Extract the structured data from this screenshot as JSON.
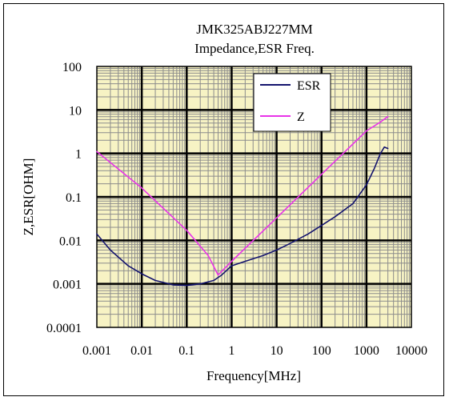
{
  "chart_data": {
    "type": "line",
    "title": "JMK325ABJ227MM",
    "subtitle": "Impedance,ESR  Freq.",
    "xlabel": "Frequency[MHz]",
    "ylabel": "Z,ESR[OHM]",
    "xscale": "log",
    "yscale": "log",
    "xlim": [
      0.001,
      10000
    ],
    "ylim": [
      0.0001,
      100
    ],
    "xticks": [
      "0.001",
      "0.01",
      "0.1",
      "1",
      "10",
      "100",
      "1000",
      "10000"
    ],
    "yticks": [
      "100",
      "10",
      "1",
      "0.1",
      "0.01",
      "0.001",
      "0.0001"
    ],
    "grid": true,
    "legend": "top-right",
    "plot_background": "#f7f3c4",
    "series": [
      {
        "name": "ESR",
        "color": "#14146e",
        "x": [
          0.001,
          0.002,
          0.005,
          0.01,
          0.02,
          0.05,
          0.1,
          0.2,
          0.4,
          0.6,
          1,
          2,
          5,
          10,
          20,
          50,
          100,
          200,
          500,
          1000,
          1500,
          2000,
          2500,
          3000
        ],
        "y": [
          0.014,
          0.006,
          0.0026,
          0.0017,
          0.0012,
          0.00095,
          0.00092,
          0.001,
          0.0012,
          0.0016,
          0.0026,
          0.0033,
          0.0045,
          0.006,
          0.0085,
          0.014,
          0.022,
          0.035,
          0.07,
          0.19,
          0.45,
          0.95,
          1.4,
          1.3
        ]
      },
      {
        "name": "Z",
        "color": "#e834e8",
        "x": [
          0.001,
          0.01,
          0.1,
          0.3,
          0.5,
          1,
          10,
          100,
          1000,
          2000,
          3000
        ],
        "y": [
          1.1,
          0.16,
          0.017,
          0.0045,
          0.0016,
          0.0033,
          0.033,
          0.33,
          3.3,
          5.2,
          7
        ]
      }
    ]
  }
}
